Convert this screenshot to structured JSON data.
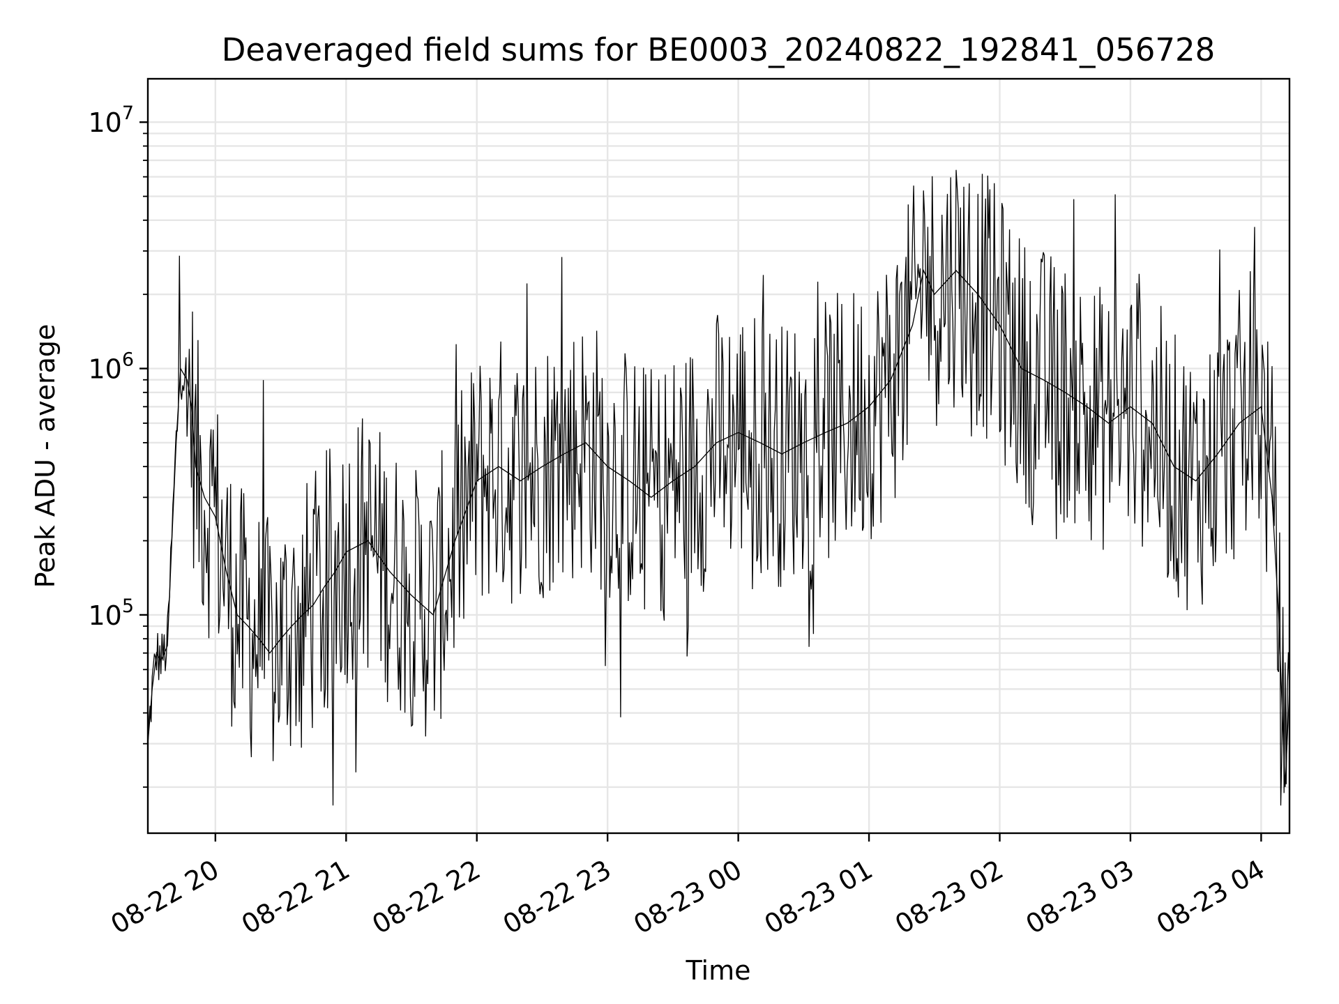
{
  "chart_data": {
    "type": "line",
    "title": "Deaveraged field sums for BE0003_20240822_192841_056728",
    "xlabel": "Time",
    "ylabel": "Peak ADU - average",
    "yscale": "log",
    "xlim": [
      "2024-08-22 19:29",
      "2024-08-23 04:13"
    ],
    "ylim": [
      13000,
      15000000
    ],
    "x_ticks": [
      "08-22 20",
      "08-22 21",
      "08-22 22",
      "08-22 23",
      "08-23 00",
      "08-23 01",
      "08-23 02",
      "08-23 03",
      "08-23 04"
    ],
    "y_ticks": [
      {
        "value": 100000,
        "base": "10",
        "exp": "5"
      },
      {
        "value": 1000000,
        "base": "10",
        "exp": "6"
      },
      {
        "value": 10000000,
        "base": "10",
        "exp": "7"
      }
    ],
    "grid": true,
    "line_color": "#000000",
    "series": [
      {
        "values_note_free": true,
        "x": [
          "2024-08-22 19:29",
          "2024-08-22 19:31",
          "2024-08-22 19:33",
          "2024-08-22 19:35",
          "2024-08-22 19:38",
          "2024-08-22 19:40",
          "2024-08-22 19:42",
          "2024-08-22 19:44",
          "2024-08-22 19:47",
          "2024-08-22 19:49",
          "2024-08-22 19:51",
          "2024-08-22 19:55",
          "2024-08-22 20:00",
          "2024-08-22 20:05",
          "2024-08-22 20:10",
          "2024-08-22 20:15",
          "2024-08-22 20:20",
          "2024-08-22 20:25",
          "2024-08-22 20:30",
          "2024-08-22 20:35",
          "2024-08-22 20:40",
          "2024-08-22 20:45",
          "2024-08-22 20:50",
          "2024-08-22 20:55",
          "2024-08-22 21:00",
          "2024-08-22 21:10",
          "2024-08-22 21:20",
          "2024-08-22 21:30",
          "2024-08-22 21:40",
          "2024-08-22 21:50",
          "2024-08-22 22:00",
          "2024-08-22 22:10",
          "2024-08-22 22:20",
          "2024-08-22 22:30",
          "2024-08-22 22:40",
          "2024-08-22 22:50",
          "2024-08-22 23:00",
          "2024-08-22 23:10",
          "2024-08-22 23:20",
          "2024-08-22 23:30",
          "2024-08-22 23:40",
          "2024-08-22 23:50",
          "2024-08-23 00:00",
          "2024-08-23 00:10",
          "2024-08-23 00:20",
          "2024-08-23 00:30",
          "2024-08-23 00:40",
          "2024-08-23 00:50",
          "2024-08-23 01:00",
          "2024-08-23 01:10",
          "2024-08-23 01:20",
          "2024-08-23 01:25",
          "2024-08-23 01:30",
          "2024-08-23 01:40",
          "2024-08-23 01:50",
          "2024-08-23 02:00",
          "2024-08-23 02:10",
          "2024-08-23 02:20",
          "2024-08-23 02:30",
          "2024-08-23 02:40",
          "2024-08-23 02:50",
          "2024-08-23 03:00",
          "2024-08-23 03:10",
          "2024-08-23 03:20",
          "2024-08-23 03:30",
          "2024-08-23 03:40",
          "2024-08-23 03:50",
          "2024-08-23 04:00",
          "2024-08-23 04:05",
          "2024-08-23 04:08",
          "2024-08-23 04:11",
          "2024-08-23 04:13"
        ],
        "y": [
          30000,
          50000,
          70000,
          65000,
          75000,
          200000,
          500000,
          1000000,
          900000,
          700000,
          400000,
          300000,
          250000,
          150000,
          100000,
          90000,
          80000,
          70000,
          80000,
          90000,
          100000,
          110000,
          130000,
          150000,
          180000,
          200000,
          150000,
          120000,
          100000,
          200000,
          350000,
          400000,
          350000,
          400000,
          450000,
          500000,
          400000,
          350000,
          300000,
          350000,
          400000,
          500000,
          550000,
          500000,
          450000,
          500000,
          550000,
          600000,
          700000,
          900000,
          1500000,
          2500000,
          2000000,
          2500000,
          2000000,
          1500000,
          1000000,
          900000,
          800000,
          700000,
          600000,
          700000,
          600000,
          400000,
          350000,
          450000,
          600000,
          700000,
          300000,
          100000,
          20000,
          50000
        ]
      }
    ]
  }
}
